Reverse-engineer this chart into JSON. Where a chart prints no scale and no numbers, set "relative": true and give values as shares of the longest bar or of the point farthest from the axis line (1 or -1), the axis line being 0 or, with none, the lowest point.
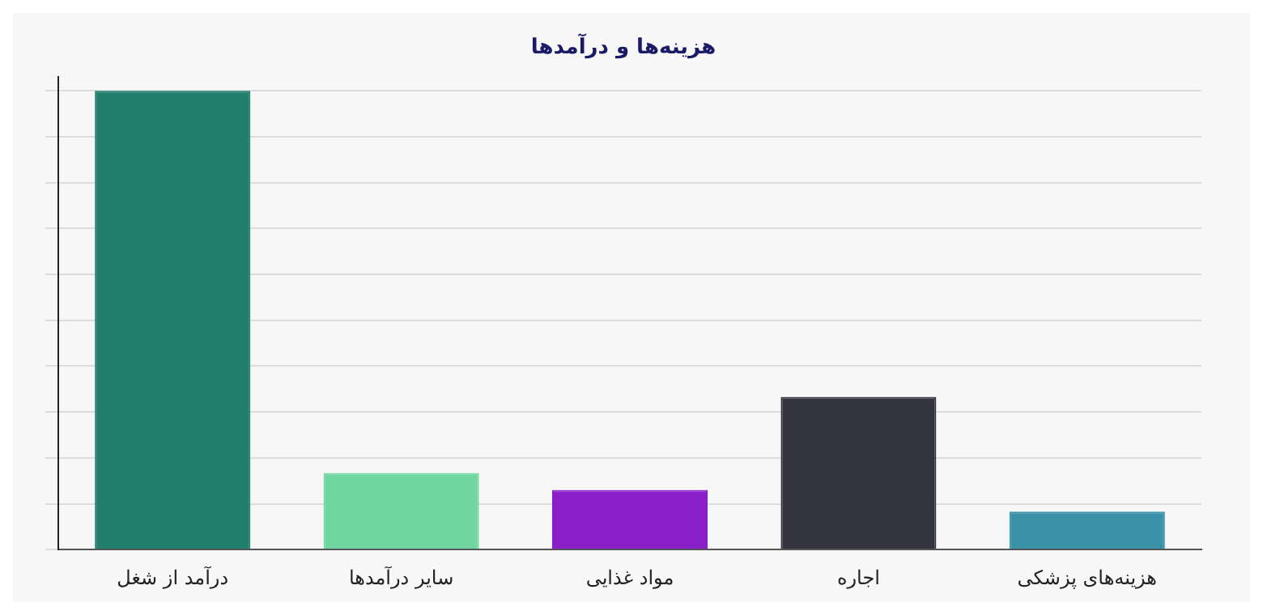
{
  "chart_data": {
    "type": "bar",
    "title": "هزینه‌ها و درآمدها",
    "relative": true,
    "categories": [
      "درآمد از شغل",
      "سایر درآمدها",
      "مواد غذایی",
      "اجاره",
      "هزینه‌های پزشکی"
    ],
    "values": [
      1,
      0.167,
      0.13,
      0.333,
      0.083
    ],
    "colors": [
      "#1f7f6c",
      "#6fd6a0",
      "#8a1fc8",
      "#34343f",
      "#3a92a8"
    ],
    "grid": "y",
    "legend": false
  }
}
